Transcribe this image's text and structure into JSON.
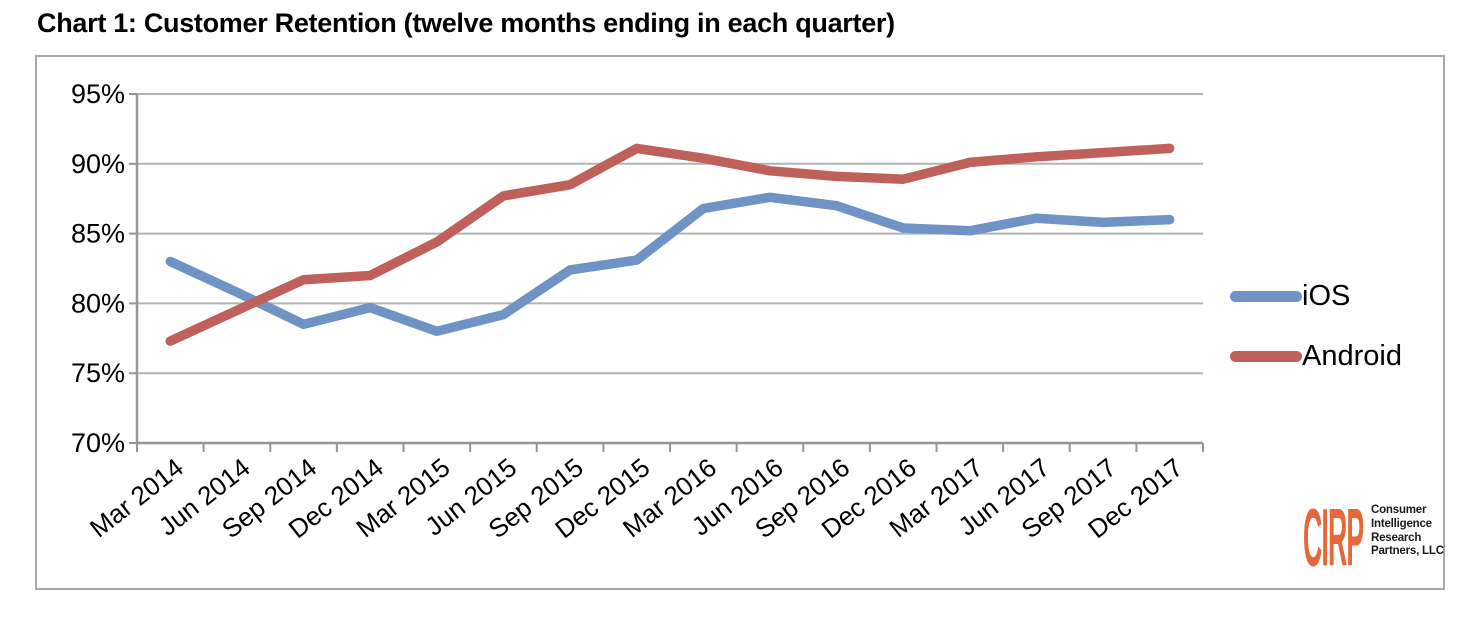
{
  "page": {
    "title": "Chart 1: Customer Retention (twelve months ending in each quarter)"
  },
  "legend": {
    "items": [
      {
        "label": "iOS",
        "color": "#6f93c4"
      },
      {
        "label": "Android",
        "color": "#c0605b"
      }
    ]
  },
  "logo": {
    "brand": "CIRP",
    "brand_color": "#e5673a",
    "lines": [
      "Consumer",
      "Intelligence",
      "Research",
      "Partners, LLC"
    ]
  },
  "chart_data": {
    "type": "line",
    "title": "Chart 1: Customer Retention (twelve months ending in each quarter)",
    "xlabel": "",
    "ylabel": "",
    "ylim": [
      70,
      95
    ],
    "ytick_step": 5,
    "ytick_labels": [
      "70%",
      "75%",
      "80%",
      "85%",
      "90%",
      "95%"
    ],
    "grid": true,
    "legend_position": "right",
    "categories": [
      "Mar 2014",
      "Jun 2014",
      "Sep 2014",
      "Dec 2014",
      "Mar 2015",
      "Jun 2015",
      "Sep 2015",
      "Dec 2015",
      "Mar 2016",
      "Jun 2016",
      "Sep 2016",
      "Dec 2016",
      "Mar 2017",
      "Jun 2017",
      "Sep 2017",
      "Dec 2017"
    ],
    "series": [
      {
        "name": "iOS",
        "color": "#6f93c4",
        "values": [
          83.0,
          80.8,
          78.5,
          79.7,
          78.0,
          79.2,
          82.4,
          83.1,
          86.8,
          87.6,
          87.0,
          85.4,
          85.2,
          86.1,
          85.8,
          86.0
        ]
      },
      {
        "name": "Android",
        "color": "#c0605b",
        "values": [
          77.3,
          79.5,
          81.7,
          82.0,
          84.4,
          87.7,
          88.5,
          91.1,
          90.4,
          89.5,
          89.1,
          88.9,
          90.1,
          90.5,
          90.8,
          91.1
        ]
      }
    ],
    "styles": {
      "gridline_color": "#b3b3b3",
      "axis_color": "#969696",
      "line_width": 9.5
    }
  }
}
